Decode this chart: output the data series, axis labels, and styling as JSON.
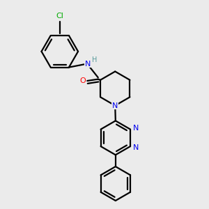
{
  "background_color": "#ebebeb",
  "bond_color": "#000000",
  "atom_colors": {
    "N": "#0000ee",
    "O": "#ff0000",
    "Cl": "#00aa00",
    "H": "#559999",
    "C": "#000000"
  },
  "figsize": [
    3.0,
    3.0
  ],
  "dpi": 100
}
